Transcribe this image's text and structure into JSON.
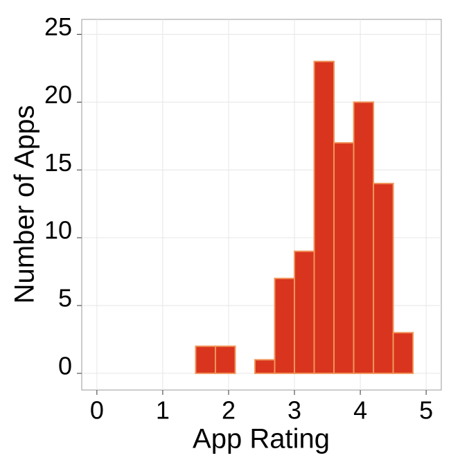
{
  "chart_data": {
    "type": "histogram",
    "xlabel": "App Rating",
    "ylabel": "Number of Apps",
    "bins": [
      0,
      0.3,
      0.6,
      0.9,
      1.2,
      1.5,
      1.8,
      2.1,
      2.4,
      2.7,
      3,
      3.3,
      3.6,
      3.9,
      4.2,
      4.5,
      4.8
    ],
    "counts": [
      0,
      0,
      0,
      0,
      0,
      2,
      2,
      0,
      1,
      7,
      9,
      23,
      17,
      20,
      14,
      3
    ],
    "color": "#d9341e",
    "edgecolor": "#f0955a",
    "xlim": [
      -0.23,
      5.23
    ],
    "ylim": [
      -1.23,
      26.1
    ],
    "xticks": [
      0,
      1,
      2,
      3,
      4,
      5
    ],
    "yticks": [
      0,
      5,
      10,
      15,
      20,
      25
    ],
    "grid": true
  }
}
